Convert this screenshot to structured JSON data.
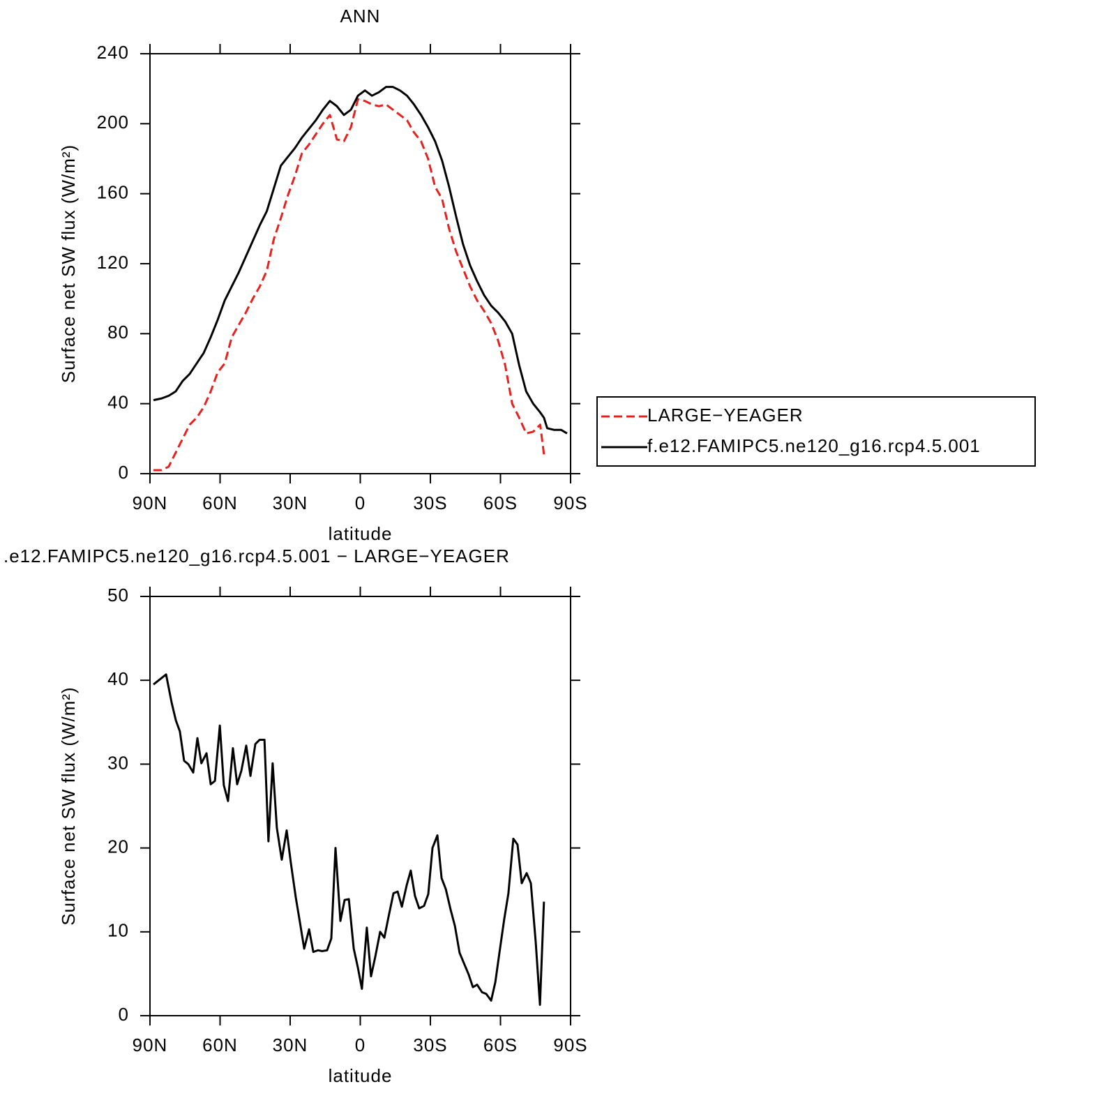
{
  "chart_data": [
    {
      "type": "line",
      "title": "ANN",
      "x_label": "latitude",
      "y_label": "Surface net SW flux (W/m²)",
      "x": [
        88.5,
        85,
        82,
        79,
        76,
        73,
        70,
        67,
        64,
        61,
        58,
        55,
        52,
        49,
        46,
        43,
        40,
        37,
        34,
        31,
        28,
        25,
        22,
        19,
        16,
        13,
        10,
        7,
        4,
        1,
        -2,
        -5,
        -8,
        -11,
        -14,
        -17,
        -20,
        -23,
        -26,
        -29,
        -32,
        -35,
        -38,
        -41,
        -44,
        -47,
        -50,
        -53,
        -56,
        -59,
        -62,
        -65,
        -68,
        -71,
        -74,
        -77,
        -78.6,
        -80,
        -83,
        -86,
        -88.5
      ],
      "series": [
        {
          "name": "LARGE−YEAGER",
          "color": "#e8201e",
          "line_style": "dashed",
          "values": [
            2,
            2,
            4,
            12,
            20,
            28,
            32,
            38,
            47,
            58,
            63,
            78,
            85,
            92,
            100,
            107,
            116,
            134,
            146,
            159,
            170,
            183,
            188,
            194,
            200,
            205,
            191,
            190,
            198,
            214,
            213,
            211,
            210,
            211,
            208,
            205,
            202,
            195,
            190,
            180,
            164,
            157,
            140,
            127,
            117,
            107,
            99,
            93,
            86,
            76,
            62,
            40,
            32,
            23,
            24,
            28,
            11,
            null,
            null,
            null,
            null
          ]
        },
        {
          "name": "f.e12.FAMIPC5.ne120_g16.rcp4.5.001",
          "color": "#000000",
          "line_style": "solid",
          "values": [
            42,
            43,
            44.5,
            47,
            53,
            57,
            63,
            69,
            78,
            88,
            99,
            107,
            115,
            124,
            133,
            142,
            150,
            163,
            176,
            181,
            186,
            192,
            197,
            202,
            208,
            213,
            210,
            205,
            208,
            216,
            219,
            216,
            218,
            221,
            221,
            219,
            216,
            211,
            205,
            198,
            190,
            179,
            164,
            147,
            131,
            119,
            110,
            102,
            96,
            92,
            87,
            80,
            62,
            47,
            40,
            35,
            32,
            26,
            25,
            25,
            23
          ]
        }
      ],
      "xlim": [
        90,
        -90
      ],
      "xticks": [
        {
          "value": 90,
          "label": "90N"
        },
        {
          "value": 60,
          "label": "60N"
        },
        {
          "value": 30,
          "label": "30N"
        },
        0,
        {
          "value": -30,
          "label": "30S"
        },
        {
          "value": -60,
          "label": "60S"
        },
        {
          "value": -90,
          "label": "90S"
        }
      ],
      "ylim": [
        0,
        240
      ],
      "yticks": [
        0,
        40,
        80,
        120,
        160,
        200,
        240
      ],
      "legend": "right"
    },
    {
      "type": "line",
      "title": ".e12.FAMIPC5.ne120_g16.rcp4.5.001 − LARGE−YEAGER",
      "x_label": "latitude",
      "y_label": "Surface net SW flux (W/m²)",
      "x": [
        88.5,
        83.1,
        80.7,
        78.9,
        77.2,
        75.4,
        73.6,
        71.5,
        69.7,
        68.0,
        65.8,
        64.0,
        62.2,
        60.1,
        58.4,
        56.6,
        54.5,
        52.7,
        50.9,
        48.8,
        47.0,
        44.9,
        43.1,
        41.0,
        39.3,
        37.5,
        35.7,
        33.6,
        31.5,
        29.7,
        27.6,
        25.8,
        24.0,
        21.9,
        20.1,
        18.1,
        16.3,
        14.2,
        12.4,
        10.6,
        8.5,
        6.7,
        4.9,
        2.8,
        1.0,
        -0.7,
        -2.8,
        -4.6,
        -6.4,
        -8.5,
        -10.3,
        -12.1,
        -14.2,
        -16.0,
        -17.8,
        -19.9,
        -21.6,
        -23.4,
        -25.2,
        -27.3,
        -29.1,
        -30.9,
        -33.0,
        -34.8,
        -36.6,
        -38.7,
        -40.5,
        -42.5,
        -44.3,
        -46.4,
        -48.2,
        -50.0,
        -52.1,
        -53.9,
        -56.0,
        -57.8,
        -59.6,
        -61.6,
        -63.4,
        -65.5,
        -67.3,
        -69.1,
        -71.2,
        -73.0,
        -75.1,
        -76.9,
        -78.6
      ],
      "values": [
        39.5,
        40.7,
        37.3,
        35.2,
        33.9,
        30.4,
        30.0,
        29.0,
        33.1,
        30.1,
        31.3,
        27.6,
        28.0,
        34.6,
        27.5,
        25.6,
        31.9,
        27.6,
        29.2,
        32.2,
        28.6,
        32.4,
        32.9,
        32.9,
        20.8,
        30.1,
        22.4,
        18.6,
        22.1,
        18.2,
        14.1,
        11.1,
        8.0,
        10.3,
        7.6,
        7.8,
        7.7,
        7.8,
        9.2,
        20.0,
        11.3,
        13.8,
        13.9,
        8.0,
        5.7,
        3.2,
        10.5,
        4.7,
        7.0,
        10.0,
        9.3,
        11.8,
        14.6,
        14.8,
        13.0,
        15.6,
        17.3,
        14.3,
        12.8,
        13.1,
        14.5,
        20.0,
        21.5,
        16.4,
        15.1,
        12.6,
        10.7,
        7.5,
        6.3,
        4.9,
        3.4,
        3.7,
        2.8,
        2.6,
        1.8,
        4.0,
        7.6,
        11.5,
        14.6,
        21.1,
        20.4,
        15.8,
        17.0,
        15.8,
        8.7,
        1.3,
        13.6
      ],
      "color": "#000000",
      "xlim": [
        90,
        -90
      ],
      "xticks": [
        {
          "value": 90,
          "label": "90N"
        },
        {
          "value": 60,
          "label": "60N"
        },
        {
          "value": 30,
          "label": "30N"
        },
        0,
        {
          "value": -30,
          "label": "30S"
        },
        {
          "value": -60,
          "label": "60S"
        },
        {
          "value": -90,
          "label": "90S"
        }
      ],
      "ylim": [
        0,
        50
      ],
      "yticks": [
        0,
        10,
        20,
        30,
        40,
        50
      ]
    }
  ]
}
